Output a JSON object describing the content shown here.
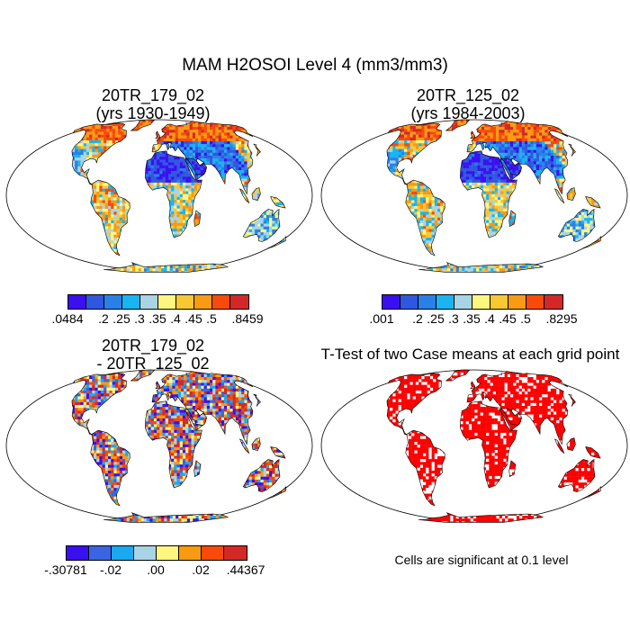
{
  "title": "MAM H2OSOI Level 4 (mm3/mm3)",
  "panels": [
    {
      "title_line1": "20TR_179_02",
      "title_line2": "(yrs 1930-1949)"
    },
    {
      "title_line1": "20TR_125_02",
      "title_line2": "(yrs 1984-2003)"
    },
    {
      "title_line1": "20TR_179_02",
      "title_line2": "- 20TR_125_02"
    },
    {
      "title_line1": "T-Test of two Case means at each grid point"
    }
  ],
  "colorbars": [
    {
      "colors": [
        "#3a10f0",
        "#3057e0",
        "#2a80e8",
        "#1ab4f0",
        "#a8d4e6",
        "#fff680",
        "#f8c832",
        "#f89a12",
        "#f84a0a",
        "#d42828"
      ],
      "labels": [
        ".0484",
        ".2",
        ".25",
        ".3",
        ".35",
        ".4",
        ".45",
        ".5",
        ".8459"
      ]
    },
    {
      "colors": [
        "#3a10f0",
        "#3057e0",
        "#2a80e8",
        "#1ab4f0",
        "#a8d4e6",
        "#fff680",
        "#f8c832",
        "#f89a12",
        "#f84a0a",
        "#d42828"
      ],
      "labels": [
        ".001",
        ".2",
        ".25",
        ".3",
        ".35",
        ".4",
        ".45",
        ".5",
        ".8295"
      ]
    },
    {
      "colors": [
        "#3a10f0",
        "#3a64e0",
        "#1aa8f0",
        "#a8d4e6",
        "#fff680",
        "#f89a12",
        "#f84a0a",
        "#d42828"
      ],
      "labels": [
        "-.30781",
        "-.02",
        ".00",
        ".02",
        ".44367"
      ]
    }
  ],
  "significance_note": "Cells are significant at 0.1 level",
  "colors": {
    "significant": "#ff0000",
    "ocean": "#ffffff",
    "outline": "#000000"
  }
}
